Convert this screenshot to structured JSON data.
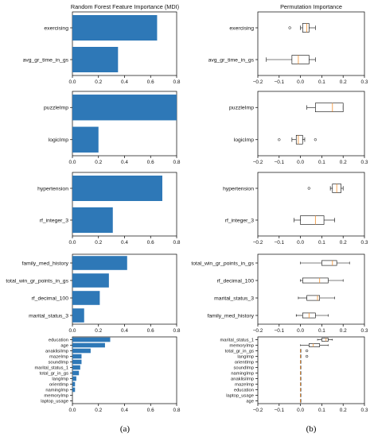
{
  "captions": [
    "(a)",
    "(b)"
  ],
  "chart_data": [
    {
      "type": "bar",
      "panel": "a",
      "row": 0,
      "orientation": "horizontal",
      "title": "Random Forest Feature Importance (MDI)",
      "categories": [
        "exercising",
        "avg_gr_time_in_gs"
      ],
      "values": [
        0.65,
        0.35
      ],
      "xlim": [
        0,
        0.8
      ],
      "xticks": [
        "0.0",
        "0.2",
        "0.4",
        "0.6",
        "0.8"
      ],
      "color": "#2e78b7",
      "grid": false
    },
    {
      "type": "box",
      "panel": "b",
      "row": 0,
      "title": "Permutation Importance",
      "categories": [
        "exercising",
        "avg_gr_time_in_gs"
      ],
      "boxes": [
        {
          "whislo": 0.0,
          "q1": 0.01,
          "med": 0.03,
          "q3": 0.04,
          "whishi": 0.07,
          "fliers": [
            -0.05
          ]
        },
        {
          "whislo": -0.16,
          "q1": -0.04,
          "med": -0.01,
          "q3": 0.04,
          "whishi": 0.07,
          "fliers": []
        }
      ],
      "xlim": [
        -0.2,
        0.3
      ],
      "xticks": [
        "−0.2",
        "−0.1",
        "0.0",
        "0.1",
        "0.2",
        "0.3"
      ],
      "grid": false
    },
    {
      "type": "bar",
      "panel": "a",
      "row": 1,
      "orientation": "horizontal",
      "categories": [
        "puzzleImp",
        "logicImp"
      ],
      "values": [
        0.8,
        0.2
      ],
      "xlim": [
        0,
        0.8
      ],
      "xticks": [
        "0.0",
        "0.2",
        "0.4",
        "0.6",
        "0.8"
      ],
      "color": "#2e78b7",
      "grid": false
    },
    {
      "type": "box",
      "panel": "b",
      "row": 1,
      "categories": [
        "puzzleImp",
        "logicImp"
      ],
      "boxes": [
        {
          "whislo": 0.03,
          "q1": 0.07,
          "med": 0.15,
          "q3": 0.2,
          "whishi": 0.2,
          "fliers": []
        },
        {
          "whislo": -0.04,
          "q1": -0.02,
          "med": -0.01,
          "q3": 0.01,
          "whishi": 0.02,
          "fliers": [
            -0.1,
            0.07
          ]
        }
      ],
      "xlim": [
        -0.2,
        0.3
      ],
      "xticks": [
        "−0.2",
        "−0.1",
        "0.0",
        "0.1",
        "0.2",
        "0.3"
      ],
      "grid": false
    },
    {
      "type": "bar",
      "panel": "a",
      "row": 2,
      "orientation": "horizontal",
      "categories": [
        "hypertension",
        "rf_integer_3"
      ],
      "values": [
        0.69,
        0.31
      ],
      "xlim": [
        0,
        0.8
      ],
      "xticks": [
        "0.0",
        "0.2",
        "0.4",
        "0.6",
        "0.8"
      ],
      "color": "#2e78b7",
      "grid": false
    },
    {
      "type": "box",
      "panel": "b",
      "row": 2,
      "categories": [
        "hypertension",
        "rf_integer_3"
      ],
      "boxes": [
        {
          "whislo": 0.14,
          "q1": 0.15,
          "med": 0.17,
          "q3": 0.19,
          "whishi": 0.2,
          "fliers": [
            0.04
          ]
        },
        {
          "whislo": -0.03,
          "q1": 0.0,
          "med": 0.07,
          "q3": 0.11,
          "whishi": 0.16,
          "fliers": []
        }
      ],
      "xlim": [
        -0.2,
        0.3
      ],
      "xticks": [
        "−0.2",
        "−0.1",
        "0.0",
        "0.1",
        "0.2",
        "0.3"
      ],
      "grid": false
    },
    {
      "type": "bar",
      "panel": "a",
      "row": 3,
      "orientation": "horizontal",
      "categories": [
        "family_med_history",
        "total_win_gr_points_in_gs",
        "rf_decimal_100",
        "marital_status_3"
      ],
      "values": [
        0.42,
        0.28,
        0.21,
        0.09
      ],
      "xlim": [
        0,
        0.8
      ],
      "xticks": [
        "0.0",
        "0.2",
        "0.4",
        "0.6",
        "0.8"
      ],
      "color": "#2e78b7",
      "grid": false
    },
    {
      "type": "box",
      "panel": "b",
      "row": 3,
      "categories": [
        "total_win_gr_points_in_gs",
        "rf_decimal_100",
        "marital_status_3",
        "family_med_history"
      ],
      "boxes": [
        {
          "whislo": 0.0,
          "q1": 0.1,
          "med": 0.15,
          "q3": 0.17,
          "whishi": 0.23,
          "fliers": []
        },
        {
          "whislo": 0.0,
          "q1": 0.01,
          "med": 0.09,
          "q3": 0.13,
          "whishi": 0.2,
          "fliers": []
        },
        {
          "whislo": -0.01,
          "q1": 0.03,
          "med": 0.08,
          "q3": 0.09,
          "whishi": 0.16,
          "fliers": []
        },
        {
          "whislo": -0.02,
          "q1": 0.01,
          "med": 0.04,
          "q3": 0.07,
          "whishi": 0.13,
          "fliers": []
        }
      ],
      "xlim": [
        -0.2,
        0.3
      ],
      "xticks": [
        "−0.2",
        "−0.1",
        "0.0",
        "0.1",
        "0.2",
        "0.3"
      ],
      "grid": false
    },
    {
      "type": "bar",
      "panel": "a",
      "row": 4,
      "orientation": "horizontal",
      "categories": [
        "education",
        "age",
        "anaklisiImp",
        "mazeImp",
        "soundImp",
        "marital_status_1",
        "total_gr_in_gs",
        "langImp",
        "orientImp",
        "namingImp",
        "memoryImp",
        "laptop_usage"
      ],
      "values": [
        0.29,
        0.25,
        0.14,
        0.07,
        0.07,
        0.06,
        0.05,
        0.03,
        0.02,
        0.02,
        0.0,
        0.0
      ],
      "xlim": [
        0,
        0.8
      ],
      "xticks": [
        "0.0",
        "0.2",
        "0.4",
        "0.6",
        "0.8"
      ],
      "color": "#2e78b7",
      "grid": false
    },
    {
      "type": "box",
      "panel": "b",
      "row": 4,
      "categories": [
        "marital_status_1",
        "memoryImp",
        "total_gr_in_gs",
        "langImp",
        "orientImp",
        "soundImp",
        "namingImp",
        "anaklisiImp",
        "mazeImp",
        "education",
        "laptop_usage",
        "age"
      ],
      "boxes": [
        {
          "whislo": 0.08,
          "q1": 0.1,
          "med": 0.12,
          "q3": 0.13,
          "whishi": 0.15,
          "fliers": []
        },
        {
          "whislo": 0.0,
          "q1": 0.04,
          "med": 0.06,
          "q3": 0.09,
          "whishi": 0.13,
          "fliers": []
        },
        {
          "whislo": 0.0,
          "q1": 0.0,
          "med": 0.0,
          "q3": 0.0,
          "whishi": 0.0,
          "fliers": [
            0.03
          ]
        },
        {
          "whislo": 0.0,
          "q1": 0.0,
          "med": 0.0,
          "q3": 0.0,
          "whishi": 0.0,
          "fliers": [
            0.03
          ]
        },
        {
          "whislo": 0.0,
          "q1": 0.0,
          "med": 0.0,
          "q3": 0.0,
          "whishi": 0.0,
          "fliers": []
        },
        {
          "whislo": 0.0,
          "q1": 0.0,
          "med": 0.0,
          "q3": 0.0,
          "whishi": 0.0,
          "fliers": []
        },
        {
          "whislo": 0.0,
          "q1": 0.0,
          "med": 0.0,
          "q3": 0.0,
          "whishi": 0.0,
          "fliers": []
        },
        {
          "whislo": 0.0,
          "q1": 0.0,
          "med": 0.0,
          "q3": 0.0,
          "whishi": 0.0,
          "fliers": []
        },
        {
          "whislo": 0.0,
          "q1": 0.0,
          "med": 0.0,
          "q3": 0.0,
          "whishi": 0.0,
          "fliers": []
        },
        {
          "whislo": 0.0,
          "q1": 0.0,
          "med": 0.0,
          "q3": 0.0,
          "whishi": 0.0,
          "fliers": []
        },
        {
          "whislo": 0.0,
          "q1": 0.0,
          "med": 0.0,
          "q3": 0.0,
          "whishi": 0.0,
          "fliers": []
        },
        {
          "whislo": 0.0,
          "q1": 0.0,
          "med": 0.0,
          "q3": 0.0,
          "whishi": 0.0,
          "fliers": []
        }
      ],
      "xlim": [
        -0.2,
        0.3
      ],
      "xticks": [
        "−0.2",
        "−0.1",
        "0.0",
        "0.1",
        "0.2",
        "0.3"
      ],
      "grid": false
    }
  ]
}
